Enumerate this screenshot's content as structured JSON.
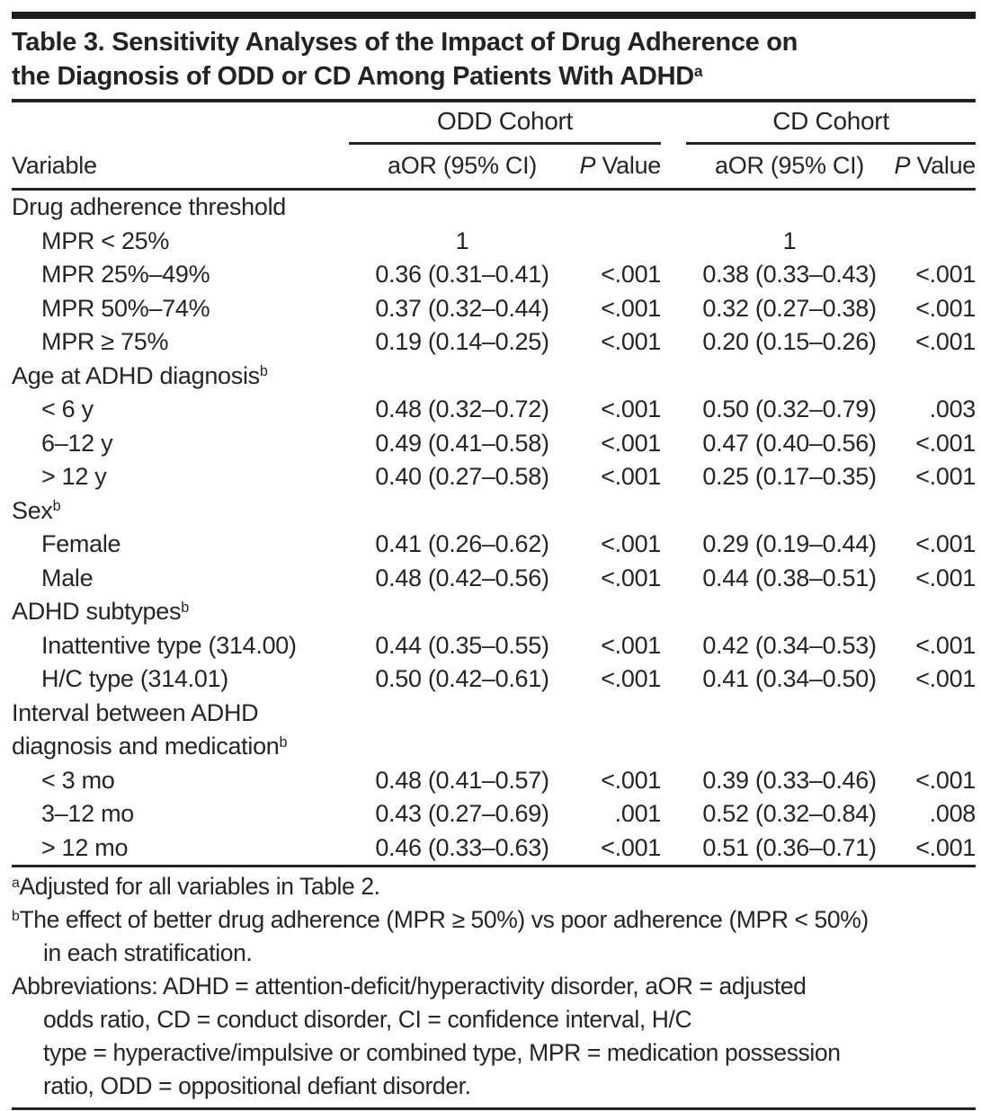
{
  "title": {
    "text": "Table 3. Sensitivity Analyses of the Impact of Drug Adherence on\nthe Diagnosis of ODD or CD Among Patients With ADHD",
    "sup": "a"
  },
  "header": {
    "variable": "Variable",
    "odd_cohort": "ODD Cohort",
    "cd_cohort": "CD Cohort",
    "aor_ci": "aOR (95% CI)",
    "p_italic": "P",
    "p_rest": " Value"
  },
  "table": {
    "rows": [
      {
        "label": "Drug adherence threshold",
        "indent": false,
        "odd_aor": "",
        "odd_p": "",
        "cd_aor": "",
        "cd_p": ""
      },
      {
        "label": "MPR < 25%",
        "indent": true,
        "odd_aor": "1",
        "odd_p": "",
        "cd_aor": "1",
        "cd_p": ""
      },
      {
        "label": "MPR 25%–49%",
        "indent": true,
        "odd_aor": "0.36 (0.31–0.41)",
        "odd_p": "<.001",
        "cd_aor": "0.38 (0.33–0.43)",
        "cd_p": "<.001"
      },
      {
        "label": "MPR 50%–74%",
        "indent": true,
        "odd_aor": "0.37 (0.32–0.44)",
        "odd_p": "<.001",
        "cd_aor": "0.32 (0.27–0.38)",
        "cd_p": "<.001"
      },
      {
        "label": "MPR ≥ 75%",
        "indent": true,
        "odd_aor": "0.19 (0.14–0.25)",
        "odd_p": "<.001",
        "cd_aor": "0.20 (0.15–0.26)",
        "cd_p": "<.001"
      },
      {
        "label": "Age at ADHD diagnosis",
        "sup": "b",
        "indent": false,
        "odd_aor": "",
        "odd_p": "",
        "cd_aor": "",
        "cd_p": ""
      },
      {
        "label": "< 6 y",
        "indent": true,
        "odd_aor": "0.48 (0.32–0.72)",
        "odd_p": "<.001",
        "cd_aor": "0.50 (0.32–0.79)",
        "cd_p": ".003"
      },
      {
        "label": "6–12 y",
        "indent": true,
        "odd_aor": "0.49 (0.41–0.58)",
        "odd_p": "<.001",
        "cd_aor": "0.47 (0.40–0.56)",
        "cd_p": "<.001"
      },
      {
        "label": "> 12 y",
        "indent": true,
        "odd_aor": "0.40 (0.27–0.58)",
        "odd_p": "<.001",
        "cd_aor": "0.25 (0.17–0.35)",
        "cd_p": "<.001"
      },
      {
        "label": "Sex",
        "sup": "b",
        "indent": false,
        "odd_aor": "",
        "odd_p": "",
        "cd_aor": "",
        "cd_p": ""
      },
      {
        "label": "Female",
        "indent": true,
        "odd_aor": "0.41 (0.26–0.62)",
        "odd_p": "<.001",
        "cd_aor": "0.29 (0.19–0.44)",
        "cd_p": "<.001"
      },
      {
        "label": "Male",
        "indent": true,
        "odd_aor": "0.48 (0.42–0.56)",
        "odd_p": "<.001",
        "cd_aor": "0.44 (0.38–0.51)",
        "cd_p": "<.001"
      },
      {
        "label": "ADHD subtypes",
        "sup": "b",
        "indent": false,
        "odd_aor": "",
        "odd_p": "",
        "cd_aor": "",
        "cd_p": ""
      },
      {
        "label": "Inattentive type (314.00)",
        "indent": true,
        "odd_aor": "0.44 (0.35–0.55)",
        "odd_p": "<.001",
        "cd_aor": "0.42 (0.34–0.53)",
        "cd_p": "<.001"
      },
      {
        "label": "H/C type (314.01)",
        "indent": true,
        "odd_aor": "0.50 (0.42–0.61)",
        "odd_p": "<.001",
        "cd_aor": "0.41 (0.34–0.50)",
        "cd_p": "<.001"
      },
      {
        "label": "Interval between ADHD\ndiagnosis and medication",
        "sup": "b",
        "indent": false,
        "odd_aor": "",
        "odd_p": "",
        "cd_aor": "",
        "cd_p": ""
      },
      {
        "label": "< 3 mo",
        "indent": true,
        "odd_aor": "0.48 (0.41–0.57)",
        "odd_p": "<.001",
        "cd_aor": "0.39 (0.33–0.46)",
        "cd_p": "<.001"
      },
      {
        "label": "3–12 mo",
        "indent": true,
        "odd_aor": "0.43 (0.27–0.69)",
        "odd_p": ".001",
        "cd_aor": "0.52 (0.32–0.84)",
        "cd_p": ".008"
      },
      {
        "label": "> 12 mo",
        "indent": true,
        "odd_aor": "0.46 (0.33–0.63)",
        "odd_p": "<.001",
        "cd_aor": "0.51 (0.36–0.71)",
        "cd_p": "<.001"
      }
    ]
  },
  "footnotes": [
    {
      "marker": "a",
      "text": "Adjusted for all variables in Table 2."
    },
    {
      "marker": "b",
      "text": "The effect of better drug adherence (MPR ≥ 50%) vs poor adherence (MPR < 50%)\nin each stratification."
    },
    {
      "marker": "",
      "text": "Abbreviations: ADHD = attention-deficit/hyperactivity disorder, aOR = adjusted\nodds ratio, CD = conduct disorder, CI = confidence interval, H/C\ntype = hyperactive/impulsive or combined type, MPR = medication possession\nratio, ODD = oppositional defiant disorder."
    }
  ]
}
